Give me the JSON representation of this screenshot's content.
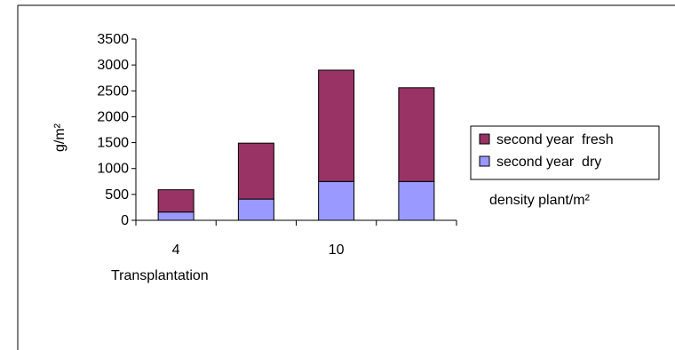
{
  "chart_data": {
    "type": "bar",
    "stacked": true,
    "categories": [
      "4",
      "",
      "10",
      ""
    ],
    "series": [
      {
        "name": "second year  dry",
        "values": [
          160,
          410,
          750,
          750
        ],
        "color": "#9999ff"
      },
      {
        "name": "second year  fresh",
        "values": [
          430,
          1080,
          2150,
          1810
        ],
        "color": "#993366"
      }
    ],
    "ylabel": "g/m²",
    "ylim": [
      0,
      3500
    ],
    "yticks": [
      0,
      500,
      1000,
      1500,
      2000,
      2500,
      3000,
      3500
    ],
    "xaxis_text": "Transplantation",
    "annotation": "density plant/m²",
    "grid": false,
    "legend_position": "right",
    "legend_order": [
      "second year  fresh",
      "second year  dry"
    ]
  }
}
